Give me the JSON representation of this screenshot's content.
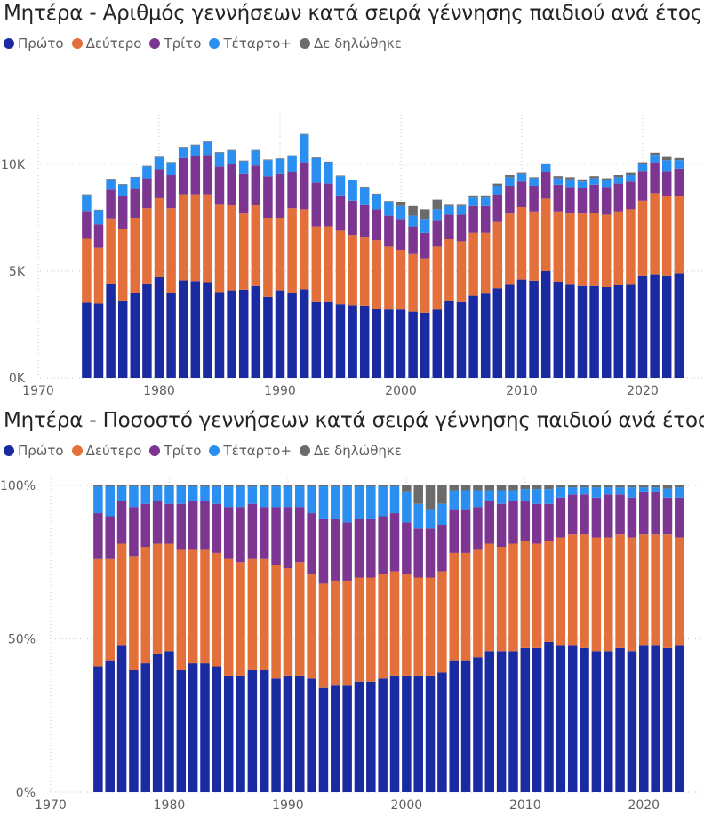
{
  "colors": {
    "first": "#1a2aa0",
    "second": "#e3703a",
    "third": "#7d3592",
    "fourth": "#2a8ff0",
    "undeclared": "#6b6b6b"
  },
  "chart_data": [
    {
      "type": "bar",
      "stacked": true,
      "title": "Μητέρα - Αριθμός γεννήσεων κατά σειρά γέννησης παιδιού ανά έτος",
      "legend_position": "top-left",
      "legend": [
        "Πρώτο",
        "Δεύτερο",
        "Τρίτο",
        "Τέταρτο+",
        "Δε δηλώθηκε"
      ],
      "x_ticks": [
        "1970",
        "1980",
        "1990",
        "2000",
        "2010",
        "2020"
      ],
      "xlim": [
        1970,
        2025
      ],
      "y_ticks": [
        "0K",
        "5K",
        "10K"
      ],
      "ylim": [
        0,
        12000
      ],
      "grid": true,
      "x": [
        1974,
        1975,
        1976,
        1977,
        1978,
        1979,
        1980,
        1981,
        1982,
        1983,
        1984,
        1985,
        1986,
        1987,
        1988,
        1989,
        1990,
        1991,
        1992,
        1993,
        1994,
        1995,
        1996,
        1997,
        1998,
        1999,
        2000,
        2001,
        2002,
        2003,
        2004,
        2005,
        2006,
        2007,
        2008,
        2009,
        2010,
        2011,
        2012,
        2013,
        2014,
        2015,
        2016,
        2017,
        2018,
        2019,
        2020,
        2021,
        2022,
        2023
      ],
      "series": [
        {
          "name": "Πρώτο",
          "values": [
            3520,
            3480,
            4420,
            3630,
            3980,
            4420,
            4740,
            4000,
            4560,
            4530,
            4480,
            4020,
            4100,
            4130,
            4300,
            3800,
            4100,
            4000,
            4150,
            3550,
            3550,
            3450,
            3400,
            3380,
            3250,
            3200,
            3200,
            3100,
            3050,
            3200,
            3600,
            3550,
            3850,
            3950,
            4200,
            4400,
            4600,
            4550,
            5000,
            4500,
            4400,
            4300,
            4300,
            4250,
            4350,
            4400,
            4800,
            4850,
            4800,
            4900
          ]
        },
        {
          "name": "Δεύτερο",
          "values": [
            3000,
            2620,
            3050,
            3370,
            3520,
            3530,
            3680,
            3950,
            4040,
            4070,
            4120,
            4130,
            4000,
            3570,
            3800,
            3700,
            3400,
            3950,
            3750,
            3550,
            3550,
            3450,
            3300,
            3200,
            3200,
            2950,
            2800,
            2700,
            2550,
            2950,
            2900,
            2850,
            2950,
            2850,
            3100,
            3300,
            3400,
            3250,
            3400,
            3300,
            3300,
            3400,
            3450,
            3400,
            3450,
            3500,
            3500,
            3800,
            3700,
            3600
          ]
        },
        {
          "name": "Τρίτο",
          "values": [
            1300,
            1100,
            1350,
            1500,
            1350,
            1400,
            1350,
            1550,
            1700,
            1800,
            1850,
            1750,
            1900,
            1850,
            1850,
            1950,
            2050,
            1700,
            2200,
            2050,
            2000,
            1650,
            1600,
            1550,
            1450,
            1450,
            1450,
            1300,
            1200,
            1250,
            1150,
            1250,
            1250,
            1250,
            1300,
            1300,
            1200,
            1200,
            1250,
            1250,
            1250,
            1200,
            1300,
            1300,
            1300,
            1300,
            1400,
            1450,
            1200,
            1300
          ]
        },
        {
          "name": "Τέταρτο+",
          "values": [
            750,
            650,
            480,
            550,
            540,
            550,
            560,
            580,
            500,
            500,
            600,
            650,
            650,
            600,
            700,
            750,
            700,
            750,
            1300,
            1150,
            1000,
            900,
            950,
            800,
            700,
            650,
            600,
            500,
            650,
            500,
            400,
            400,
            400,
            400,
            400,
            400,
            350,
            350,
            350,
            300,
            350,
            300,
            300,
            300,
            300,
            300,
            300,
            350,
            500,
            400
          ]
        },
        {
          "name": "Δε δηλώθηκε",
          "values": [
            30,
            30,
            30,
            30,
            30,
            30,
            30,
            30,
            30,
            30,
            30,
            30,
            30,
            30,
            30,
            30,
            30,
            30,
            30,
            30,
            30,
            30,
            30,
            30,
            30,
            30,
            200,
            450,
            450,
            450,
            100,
            100,
            100,
            100,
            100,
            100,
            50,
            50,
            50,
            100,
            100,
            100,
            100,
            100,
            100,
            100,
            100,
            100,
            150,
            100
          ]
        }
      ]
    },
    {
      "type": "bar",
      "stacked": true,
      "normalized": true,
      "title": "Μητέρα - Ποσοστό γεννήσεων κατά σειρά γέννησης παιδιού ανά έτος",
      "legend_position": "top-left",
      "legend": [
        "Πρώτο",
        "Δεύτερο",
        "Τρίτο",
        "Τέταρτο+",
        "Δε δηλώθηκε"
      ],
      "x_ticks": [
        "1970",
        "1980",
        "1990",
        "2000",
        "2010",
        "2020"
      ],
      "xlim": [
        1970,
        2025
      ],
      "y_ticks": [
        "0%",
        "50%",
        "100%"
      ],
      "ylim": [
        0,
        100
      ],
      "grid": true,
      "x": [
        1974,
        1975,
        1976,
        1977,
        1978,
        1979,
        1980,
        1981,
        1982,
        1983,
        1984,
        1985,
        1986,
        1987,
        1988,
        1989,
        1990,
        1991,
        1992,
        1993,
        1994,
        1995,
        1996,
        1997,
        1998,
        1999,
        2000,
        2001,
        2002,
        2003,
        2004,
        2005,
        2006,
        2007,
        2008,
        2009,
        2010,
        2011,
        2012,
        2013,
        2014,
        2015,
        2016,
        2017,
        2018,
        2019,
        2020,
        2021,
        2022,
        2023
      ],
      "series": [
        {
          "name": "Πρώτο",
          "values": [
            41,
            43,
            48,
            40,
            42,
            45,
            46,
            40,
            42,
            42,
            41,
            38,
            38,
            40,
            40,
            37,
            38,
            38,
            37,
            34,
            35,
            35,
            36,
            36,
            37,
            38,
            38,
            38,
            38,
            39,
            43,
            43,
            44,
            46,
            46,
            46,
            47,
            47,
            49,
            48,
            48,
            47,
            46,
            46,
            47,
            46,
            48,
            48,
            47,
            48
          ]
        },
        {
          "name": "Δεύτερο",
          "values": [
            35,
            33,
            33,
            37,
            38,
            36,
            35,
            39,
            37,
            37,
            37,
            38,
            37,
            36,
            36,
            37,
            35,
            37,
            34,
            34,
            34,
            34,
            34,
            34,
            34,
            34,
            33,
            32,
            32,
            33,
            35,
            35,
            35,
            35,
            34,
            35,
            35,
            34,
            33,
            35,
            36,
            37,
            37,
            37,
            37,
            37,
            36,
            36,
            37,
            35
          ]
        },
        {
          "name": "Τρίτο",
          "values": [
            15,
            14,
            14,
            16,
            14,
            14,
            13,
            15,
            16,
            16,
            16,
            17,
            18,
            18,
            17,
            19,
            20,
            18,
            20,
            21,
            20,
            19,
            19,
            19,
            19,
            19,
            17,
            16,
            16,
            15,
            14,
            14,
            14,
            14,
            14,
            14,
            13,
            13,
            12,
            13,
            13,
            13,
            13,
            14,
            13,
            13,
            14,
            14,
            12,
            13
          ]
        },
        {
          "name": "Τέταρτο+",
          "values": [
            8.7,
            9.7,
            4.7,
            6.7,
            5.7,
            4.7,
            5.7,
            5.7,
            4.7,
            4.7,
            5.7,
            6.7,
            6.7,
            5.7,
            6.7,
            6.7,
            6.7,
            6.7,
            8.7,
            10.7,
            10.7,
            11.7,
            10.7,
            10.7,
            9.7,
            8.7,
            10,
            8,
            6,
            7,
            6.4,
            6.4,
            5.4,
            3.4,
            4.4,
            3.4,
            3.8,
            4.8,
            4.8,
            3.4,
            2.4,
            2.4,
            3.4,
            2.4,
            2.4,
            3.4,
            1.4,
            1.4,
            3,
            3.4
          ]
        },
        {
          "name": "Δε δηλώθηκε",
          "values": [
            0.3,
            0.3,
            0.3,
            0.3,
            0.3,
            0.3,
            0.3,
            0.3,
            0.3,
            0.3,
            0.3,
            0.3,
            0.3,
            0.3,
            0.3,
            0.3,
            0.3,
            0.3,
            0.3,
            0.3,
            0.3,
            0.3,
            0.3,
            0.3,
            0.3,
            0.3,
            2,
            6,
            8,
            6,
            1.6,
            1.6,
            1.6,
            1.6,
            1.6,
            1.6,
            1.2,
            1.2,
            1.2,
            0.6,
            0.6,
            0.6,
            0.6,
            0.6,
            0.6,
            0.6,
            0.6,
            0.6,
            1,
            0.6
          ]
        }
      ]
    }
  ]
}
